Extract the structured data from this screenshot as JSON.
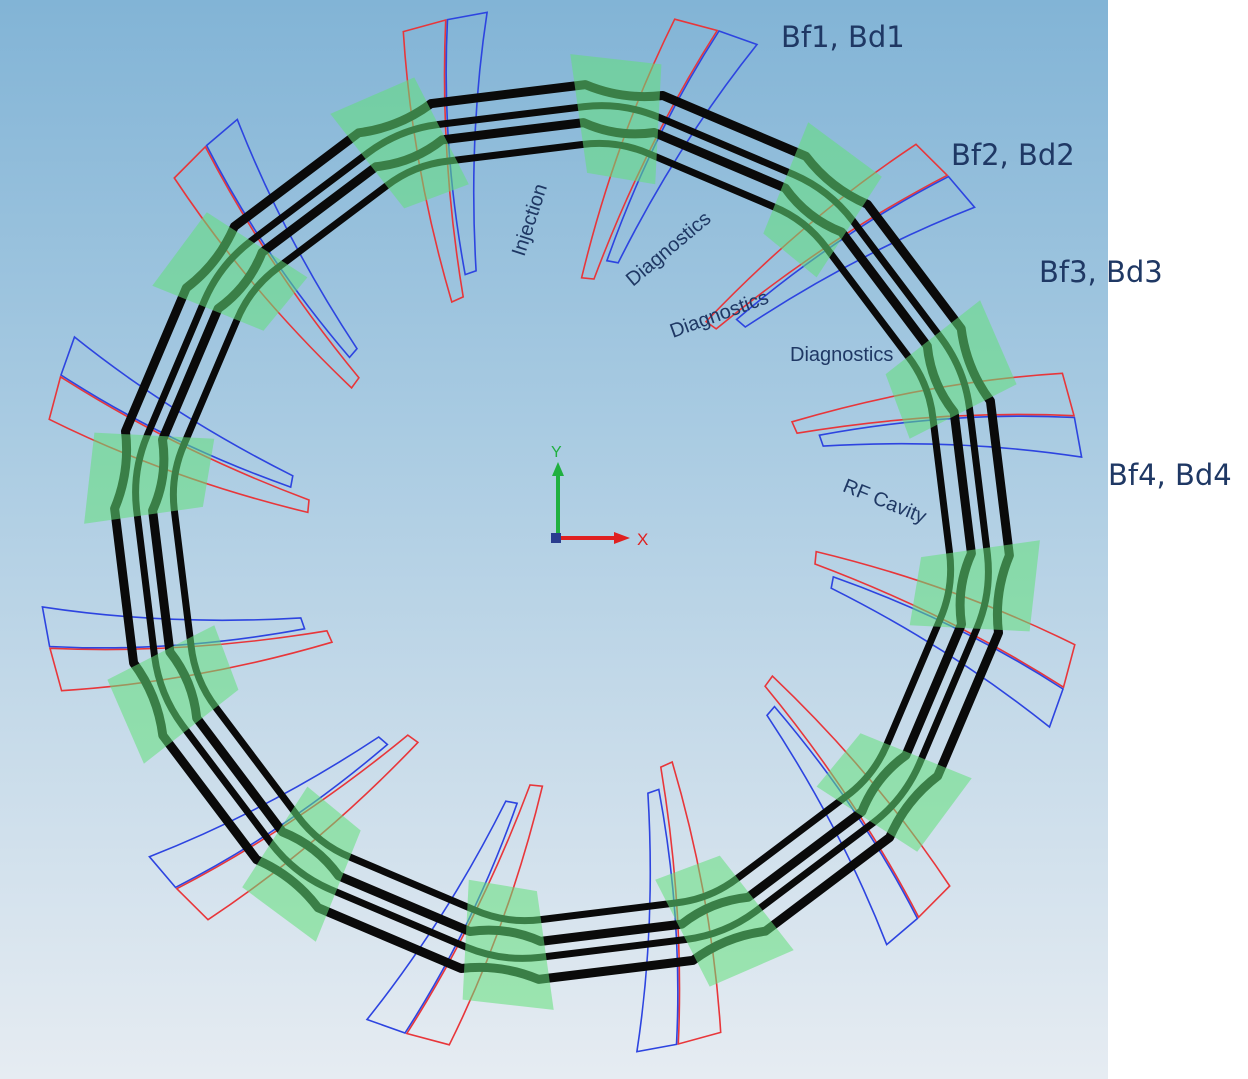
{
  "callouts": {
    "bf1_bd1": "Bf1, Bd1",
    "bf2_bd2": "Bf2, Bd2",
    "bf3_bd3": "Bf3, Bd3",
    "bf4_bd4": "Bf4, Bd4"
  },
  "sections": {
    "injection": "Injection",
    "diagnostics_1": "Diagnostics",
    "diagnostics_2": "Diagnostics",
    "diagnostics_3": "Diagnostics",
    "rf_cavity": "RF Cavity"
  },
  "axes": {
    "x_label": "X",
    "y_label": "Y"
  },
  "ring": {
    "cells": 12
  },
  "colors": {
    "beam_pipe": "#0a0a0a",
    "magnet_field": "#63e07a",
    "coil_red": "#e8363a",
    "coil_blue": "#2d44e0",
    "axis_x": "#e02020",
    "axis_y": "#20b040",
    "text": "#1f3864"
  }
}
